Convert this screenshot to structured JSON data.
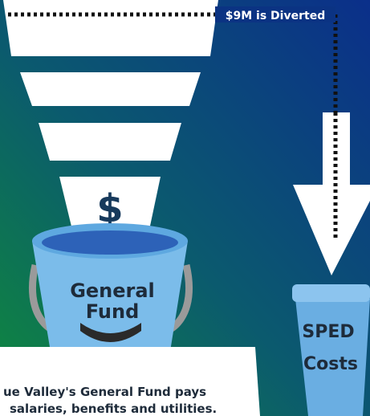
{
  "annotation": "$9M is Diverted",
  "funnel_symbol": "$",
  "bucket_label": [
    "General",
    "Fund"
  ],
  "cup_label": [
    "SPED",
    "Costs"
  ],
  "caption": [
    "ue Valley's General Fund pays",
    "salaries, benefits and utilities."
  ]
}
